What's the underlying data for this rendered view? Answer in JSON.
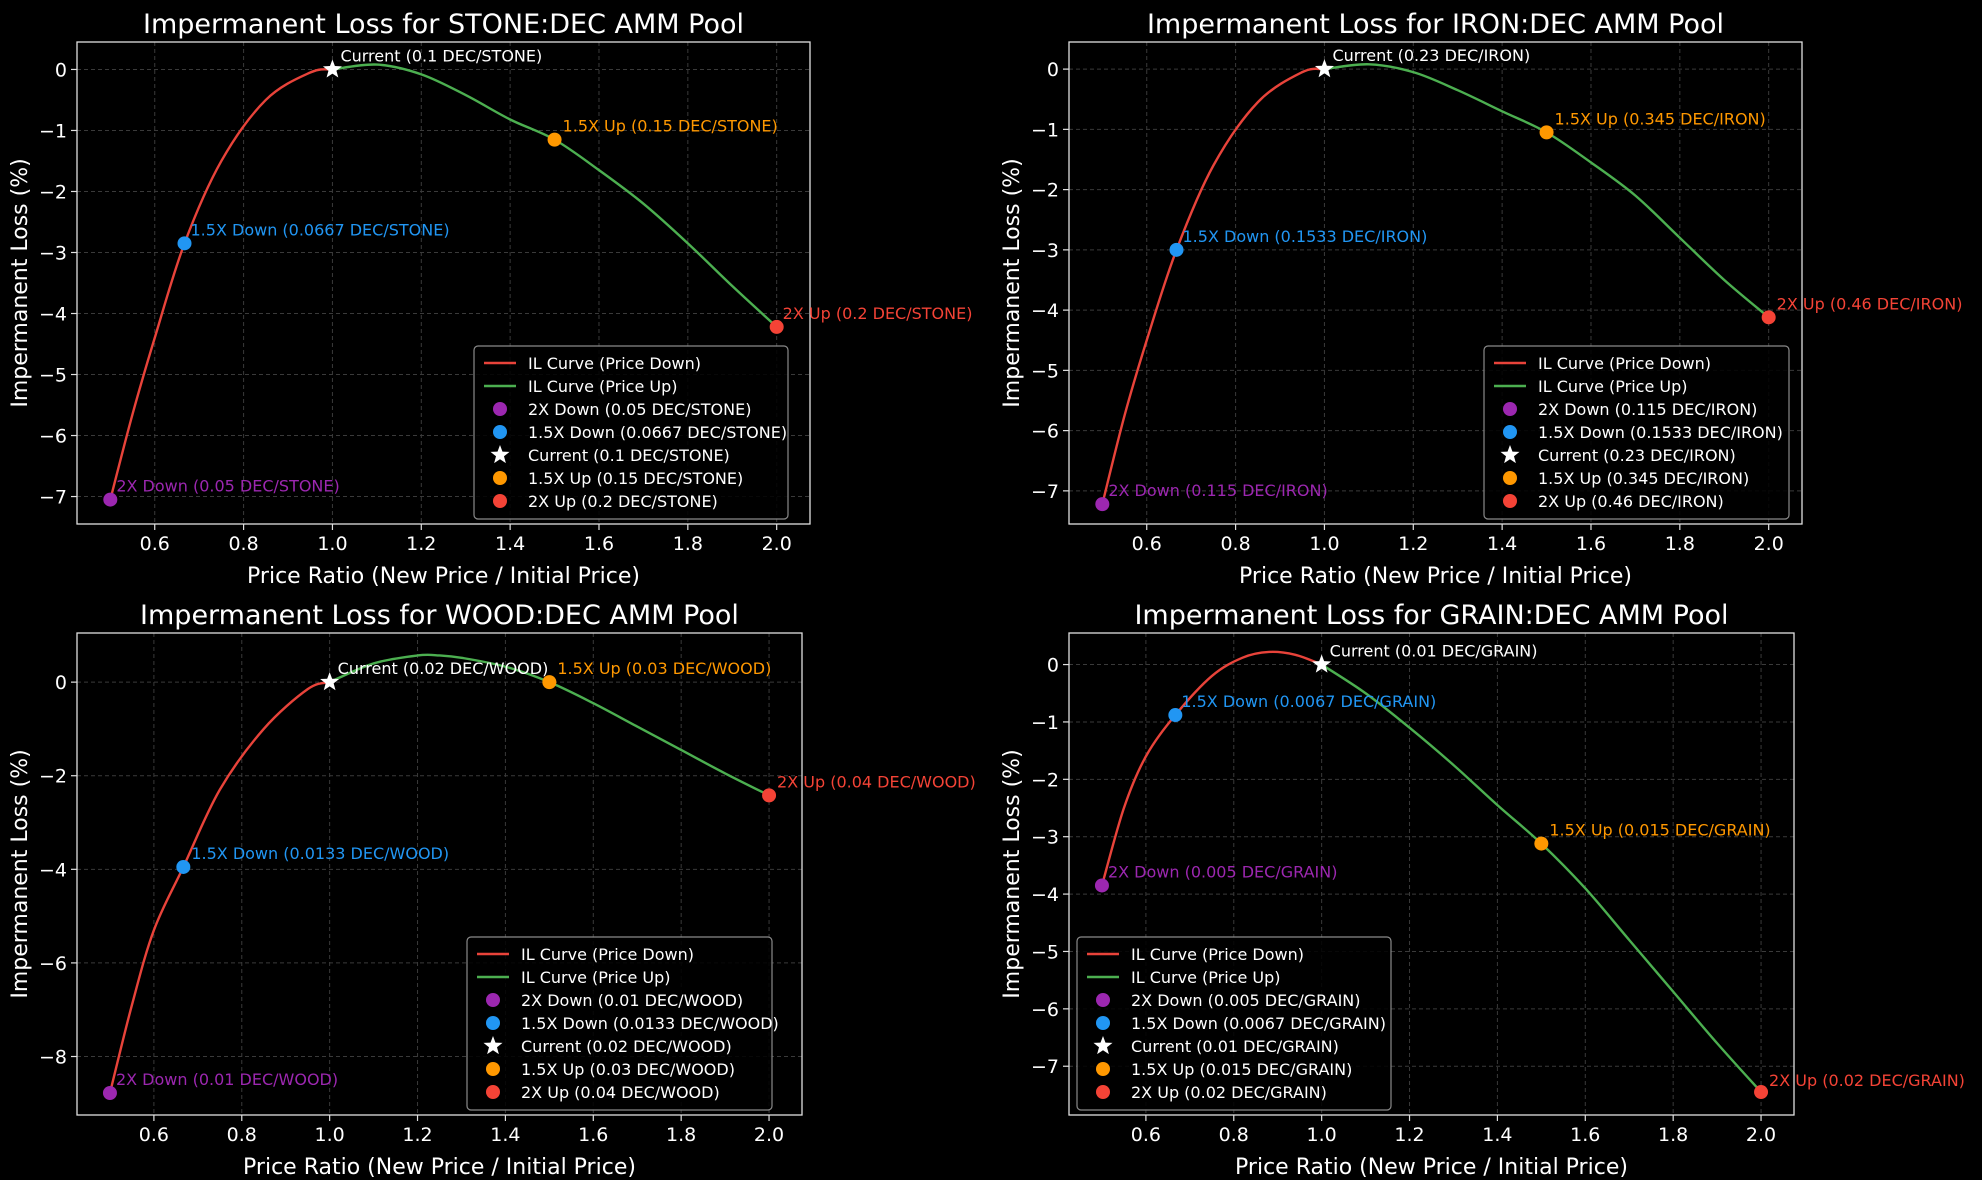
{
  "chart_data": [
    {
      "type": "line",
      "title": "Impermanent Loss for STONE:DEC AMM Pool",
      "xlabel": "Price Ratio (New Price / Initial Price)",
      "ylabel": "Impermanent Loss (%)",
      "xlim": [
        0.425,
        2.075
      ],
      "ylim": [
        -7.45,
        0.45
      ],
      "xticks": [
        0.6,
        0.8,
        1.0,
        1.2,
        1.4,
        1.6,
        1.8,
        2.0
      ],
      "yticks": [
        0,
        -1,
        -2,
        -3,
        -4,
        -5,
        -6,
        -7
      ],
      "grid": true,
      "legend_position": "lower-right",
      "series": [
        {
          "name": "IL Curve (Price Down)",
          "color": "#e8433a",
          "x": [
            0.5,
            0.55,
            0.6,
            0.667,
            0.75,
            0.85,
            0.95,
            1.0
          ],
          "y": [
            -7.05,
            -5.65,
            -4.4,
            -2.85,
            -1.5,
            -0.5,
            -0.05,
            0
          ]
        },
        {
          "name": "IL Curve (Price Up)",
          "color": "#4caf50",
          "x": [
            1.0,
            1.1,
            1.2,
            1.3,
            1.4,
            1.5,
            1.6,
            1.7,
            1.8,
            1.9,
            2.0
          ],
          "y": [
            0,
            0.08,
            -0.08,
            -0.42,
            -0.82,
            -1.15,
            -1.65,
            -2.2,
            -2.85,
            -3.55,
            -4.22
          ]
        }
      ],
      "markers": [
        {
          "name": "2X Down (0.05 DEC/STONE)",
          "symbol": "circle",
          "color": "#9c27b0",
          "x": 0.5,
          "y": -7.05
        },
        {
          "name": "1.5X Down (0.0667 DEC/STONE)",
          "symbol": "circle",
          "color": "#2196f3",
          "x": 0.667,
          "y": -2.85
        },
        {
          "name": "Current (0.1 DEC/STONE)",
          "symbol": "star",
          "color": "#ffffff",
          "x": 1.0,
          "y": 0
        },
        {
          "name": "1.5X Up (0.15 DEC/STONE)",
          "symbol": "circle",
          "color": "#ff9800",
          "x": 1.5,
          "y": -1.15
        },
        {
          "name": "2X Up (0.2 DEC/STONE)",
          "symbol": "circle",
          "color": "#f44336",
          "x": 2.0,
          "y": -4.22
        }
      ]
    },
    {
      "type": "line",
      "title": "Impermanent Loss for IRON:DEC AMM Pool",
      "xlabel": "Price Ratio (New Price / Initial Price)",
      "ylabel": "Impermanent Loss (%)",
      "xlim": [
        0.425,
        2.075
      ],
      "ylim": [
        -7.55,
        0.45
      ],
      "xticks": [
        0.6,
        0.8,
        1.0,
        1.2,
        1.4,
        1.6,
        1.8,
        2.0
      ],
      "yticks": [
        0,
        -1,
        -2,
        -3,
        -4,
        -5,
        -6,
        -7
      ],
      "grid": true,
      "legend_position": "lower-right",
      "series": [
        {
          "name": "IL Curve (Price Down)",
          "color": "#e8433a",
          "x": [
            0.5,
            0.55,
            0.6,
            0.667,
            0.75,
            0.85,
            0.95,
            1.0
          ],
          "y": [
            -7.22,
            -5.75,
            -4.5,
            -3.0,
            -1.6,
            -0.55,
            -0.05,
            0
          ]
        },
        {
          "name": "IL Curve (Price Up)",
          "color": "#4caf50",
          "x": [
            1.0,
            1.1,
            1.2,
            1.3,
            1.4,
            1.5,
            1.6,
            1.7,
            1.8,
            1.9,
            2.0
          ],
          "y": [
            0,
            0.08,
            -0.05,
            -0.35,
            -0.7,
            -1.05,
            -1.55,
            -2.1,
            -2.8,
            -3.5,
            -4.12
          ]
        }
      ],
      "markers": [
        {
          "name": "2X Down (0.115 DEC/IRON)",
          "symbol": "circle",
          "color": "#9c27b0",
          "x": 0.5,
          "y": -7.22
        },
        {
          "name": "1.5X Down (0.1533 DEC/IRON)",
          "symbol": "circle",
          "color": "#2196f3",
          "x": 0.667,
          "y": -3.0
        },
        {
          "name": "Current (0.23 DEC/IRON)",
          "symbol": "star",
          "color": "#ffffff",
          "x": 1.0,
          "y": 0
        },
        {
          "name": "1.5X Up (0.345 DEC/IRON)",
          "symbol": "circle",
          "color": "#ff9800",
          "x": 1.5,
          "y": -1.05
        },
        {
          "name": "2X Up (0.46 DEC/IRON)",
          "symbol": "circle",
          "color": "#f44336",
          "x": 2.0,
          "y": -4.12
        }
      ]
    },
    {
      "type": "line",
      "title": "Impermanent Loss for WOOD:DEC AMM Pool",
      "xlabel": "Price Ratio (New Price / Initial Price)",
      "ylabel": "Impermanent Loss (%)",
      "xlim": [
        0.425,
        2.075
      ],
      "ylim": [
        -9.25,
        1.05
      ],
      "xticks": [
        0.6,
        0.8,
        1.0,
        1.2,
        1.4,
        1.6,
        1.8,
        2.0
      ],
      "yticks": [
        0,
        -2,
        -4,
        -6,
        -8
      ],
      "grid": true,
      "legend_position": "lower-right",
      "series": [
        {
          "name": "IL Curve (Price Down)",
          "color": "#e8433a",
          "x": [
            0.5,
            0.55,
            0.6,
            0.667,
            0.75,
            0.85,
            0.95,
            1.0
          ],
          "y": [
            -8.78,
            -6.9,
            -5.3,
            -3.95,
            -2.3,
            -1.0,
            -0.15,
            0
          ]
        },
        {
          "name": "IL Curve (Price Up)",
          "color": "#4caf50",
          "x": [
            1.0,
            1.1,
            1.2,
            1.25,
            1.3,
            1.4,
            1.5,
            1.6,
            1.7,
            1.8,
            1.9,
            2.0
          ],
          "y": [
            0,
            0.4,
            0.57,
            0.57,
            0.52,
            0.33,
            0.0,
            -0.45,
            -0.95,
            -1.45,
            -1.95,
            -2.42
          ]
        }
      ],
      "markers": [
        {
          "name": "2X Down (0.01 DEC/WOOD)",
          "symbol": "circle",
          "color": "#9c27b0",
          "x": 0.5,
          "y": -8.78
        },
        {
          "name": "1.5X Down (0.0133 DEC/WOOD)",
          "symbol": "circle",
          "color": "#2196f3",
          "x": 0.667,
          "y": -3.95
        },
        {
          "name": "Current (0.02 DEC/WOOD)",
          "symbol": "star",
          "color": "#ffffff",
          "x": 1.0,
          "y": 0
        },
        {
          "name": "1.5X Up (0.03 DEC/WOOD)",
          "symbol": "circle",
          "color": "#ff9800",
          "x": 1.5,
          "y": 0.0
        },
        {
          "name": "2X Up (0.04 DEC/WOOD)",
          "symbol": "circle",
          "color": "#f44336",
          "x": 2.0,
          "y": -2.42
        }
      ]
    },
    {
      "type": "line",
      "title": "Impermanent Loss for GRAIN:DEC AMM Pool",
      "xlabel": "Price Ratio (New Price / Initial Price)",
      "ylabel": "Impermanent Loss (%)",
      "xlim": [
        0.425,
        2.075
      ],
      "ylim": [
        -7.85,
        0.55
      ],
      "xticks": [
        0.6,
        0.8,
        1.0,
        1.2,
        1.4,
        1.6,
        1.8,
        2.0
      ],
      "yticks": [
        0,
        -1,
        -2,
        -3,
        -4,
        -5,
        -6,
        -7
      ],
      "grid": true,
      "legend_position": "lower-left",
      "series": [
        {
          "name": "IL Curve (Price Down)",
          "color": "#e8433a",
          "x": [
            0.5,
            0.55,
            0.6,
            0.667,
            0.75,
            0.82,
            0.88,
            0.94,
            1.0
          ],
          "y": [
            -3.85,
            -2.5,
            -1.6,
            -0.88,
            -0.2,
            0.12,
            0.22,
            0.17,
            0
          ]
        },
        {
          "name": "IL Curve (Price Up)",
          "color": "#4caf50",
          "x": [
            1.0,
            1.1,
            1.2,
            1.3,
            1.4,
            1.5,
            1.6,
            1.7,
            1.8,
            1.9,
            2.0
          ],
          "y": [
            0,
            -0.5,
            -1.1,
            -1.75,
            -2.45,
            -3.12,
            -3.9,
            -4.8,
            -5.7,
            -6.6,
            -7.45
          ]
        }
      ],
      "markers": [
        {
          "name": "2X Down (0.005 DEC/GRAIN)",
          "symbol": "circle",
          "color": "#9c27b0",
          "x": 0.5,
          "y": -3.85
        },
        {
          "name": "1.5X Down (0.0067 DEC/GRAIN)",
          "symbol": "circle",
          "color": "#2196f3",
          "x": 0.667,
          "y": -0.88
        },
        {
          "name": "Current (0.01 DEC/GRAIN)",
          "symbol": "star",
          "color": "#ffffff",
          "x": 1.0,
          "y": 0
        },
        {
          "name": "1.5X Up (0.015 DEC/GRAIN)",
          "symbol": "circle",
          "color": "#ff9800",
          "x": 1.5,
          "y": -3.12
        },
        {
          "name": "2X Up (0.02 DEC/GRAIN)",
          "symbol": "circle",
          "color": "#f44336",
          "x": 2.0,
          "y": -7.45
        }
      ]
    }
  ]
}
